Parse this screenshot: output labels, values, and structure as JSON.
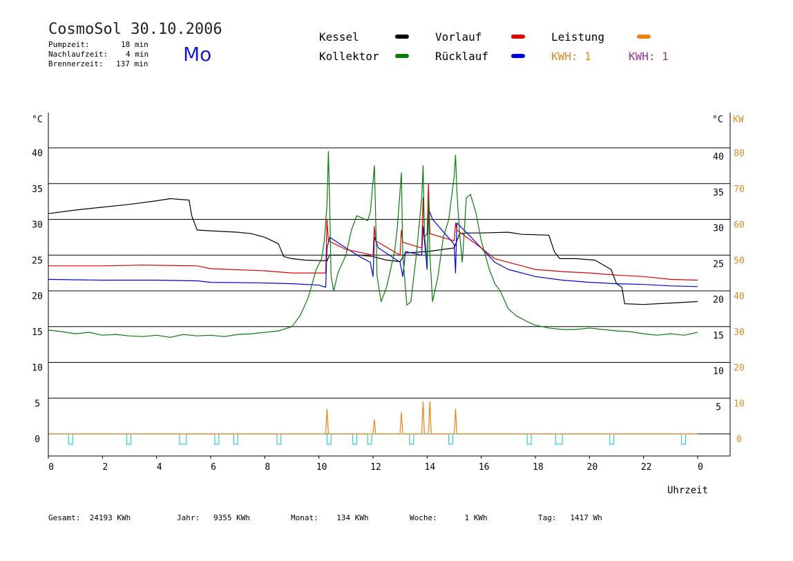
{
  "header": {
    "title": "CosmoSol 30.10.2006",
    "day": "Mo",
    "stats": [
      {
        "label": "Pumpzeit:",
        "value": "18 min"
      },
      {
        "label": "Nachlaufzeit:",
        "value": "4 min"
      },
      {
        "label": "Brennerzeit:",
        "value": "137 min"
      }
    ]
  },
  "legend": {
    "kessel": "Kessel",
    "vorlauf": "Vorlauf",
    "leistung": "Leistung",
    "kollektor": "Kollektor",
    "ruecklauf": "Rücklauf",
    "kwh1": "KWH: 1",
    "kwh2": "KWH: 1"
  },
  "colors": {
    "kessel": "#000000",
    "vorlauf": "#dd0000",
    "leistung": "#f08010",
    "kollektor": "#0a7a0a",
    "ruecklauf": "#0000dd",
    "kwh2": "#993399",
    "pump": "#33cccc",
    "axis_right_kw": "#e08a1e"
  },
  "footer": {
    "gesamt": "Gesamt:  24193 KWh",
    "jahr": "Jahr:   9355 KWh",
    "monat": "Monat:    134 KWh",
    "woche": "Woche:      1 KWh",
    "tag": "Tag:   1417 Wh"
  },
  "chart_data": {
    "type": "line",
    "xlabel": "Uhrzeit",
    "ylabel_left": "°C",
    "ylabel_right_temp": "°C",
    "ylabel_right_power": "KW",
    "x_ticks": [
      "0",
      "2",
      "4",
      "6",
      "8",
      "10",
      "12",
      "14",
      "16",
      "18",
      "20",
      "22",
      "0"
    ],
    "xlim": [
      0,
      24
    ],
    "ylim": [
      -3,
      45
    ],
    "y_ticks_left": [
      "0",
      "5",
      "10",
      "15",
      "20",
      "25",
      "30",
      "35",
      "40"
    ],
    "y_ticks_right_temp": [
      "5",
      "10",
      "15",
      "20",
      "25",
      "30",
      "35",
      "40"
    ],
    "y_ticks_right_power": [
      "0",
      "10",
      "20",
      "30",
      "40",
      "50",
      "60",
      "70",
      "80"
    ],
    "grid": true,
    "series": [
      {
        "name": "Kessel",
        "key": "kessel",
        "points": [
          [
            0,
            30.8
          ],
          [
            1,
            31.3
          ],
          [
            2,
            31.7
          ],
          [
            3,
            32.1
          ],
          [
            4,
            32.6
          ],
          [
            4.5,
            32.9
          ],
          [
            5.2,
            32.7
          ],
          [
            5.3,
            30.5
          ],
          [
            5.5,
            28.5
          ],
          [
            6,
            28.4
          ],
          [
            7,
            28.2
          ],
          [
            7.5,
            28.0
          ],
          [
            8,
            27.5
          ],
          [
            8.5,
            26.6
          ],
          [
            8.7,
            24.8
          ],
          [
            9,
            24.5
          ],
          [
            9.5,
            24.3
          ],
          [
            10.3,
            24.2
          ],
          [
            10.4,
            25.0
          ],
          [
            11.5,
            25.0
          ],
          [
            12,
            24.8
          ],
          [
            12.5,
            24.3
          ],
          [
            13,
            24.1
          ],
          [
            13.2,
            25.3
          ],
          [
            14,
            25.5
          ],
          [
            15,
            26.0
          ],
          [
            15.2,
            28.0
          ],
          [
            15.5,
            28.1
          ],
          [
            16,
            28.1
          ],
          [
            17,
            28.2
          ],
          [
            17.5,
            27.9
          ],
          [
            18.5,
            27.8
          ],
          [
            18.7,
            25.5
          ],
          [
            18.9,
            24.5
          ],
          [
            19.5,
            24.5
          ],
          [
            20.2,
            24.3
          ],
          [
            20.8,
            23.0
          ],
          [
            21,
            21.0
          ],
          [
            21.2,
            20.5
          ],
          [
            21.3,
            18.2
          ],
          [
            22,
            18.1
          ],
          [
            23,
            18.3
          ],
          [
            24,
            18.5
          ]
        ]
      },
      {
        "name": "Vorlauf",
        "key": "vorlauf",
        "points": [
          [
            0,
            23.5
          ],
          [
            2,
            23.5
          ],
          [
            3.5,
            23.6
          ],
          [
            5.5,
            23.5
          ],
          [
            6,
            23.1
          ],
          [
            8,
            22.8
          ],
          [
            9,
            22.5
          ],
          [
            10,
            22.5
          ],
          [
            10.25,
            22.5
          ],
          [
            10.3,
            30.0
          ],
          [
            10.35,
            27.0
          ],
          [
            11,
            25.8
          ],
          [
            12,
            25.0
          ],
          [
            12.05,
            29.0
          ],
          [
            12.1,
            27.0
          ],
          [
            13,
            25.0
          ],
          [
            13.05,
            28.5
          ],
          [
            13.1,
            26.8
          ],
          [
            13.8,
            26.0
          ],
          [
            13.85,
            33.0
          ],
          [
            13.9,
            27.5
          ],
          [
            14,
            28.0
          ],
          [
            14.05,
            35.0
          ],
          [
            14.1,
            28.0
          ],
          [
            15,
            27.0
          ],
          [
            15.05,
            29.5
          ],
          [
            15.1,
            28.5
          ],
          [
            16,
            26.0
          ],
          [
            16.5,
            24.5
          ],
          [
            17,
            24.0
          ],
          [
            18,
            23.0
          ],
          [
            19,
            22.7
          ],
          [
            20,
            22.5
          ],
          [
            21,
            22.2
          ],
          [
            22,
            22.0
          ],
          [
            23,
            21.6
          ],
          [
            24,
            21.5
          ]
        ]
      },
      {
        "name": "Rücklauf",
        "key": "ruecklauf",
        "points": [
          [
            0,
            21.6
          ],
          [
            2,
            21.5
          ],
          [
            4,
            21.5
          ],
          [
            5.5,
            21.4
          ],
          [
            6,
            21.2
          ],
          [
            8,
            21.1
          ],
          [
            9,
            21.0
          ],
          [
            10,
            20.8
          ],
          [
            10.25,
            20.5
          ],
          [
            10.3,
            26.0
          ],
          [
            10.4,
            27.5
          ],
          [
            11,
            26.0
          ],
          [
            11.5,
            24.8
          ],
          [
            11.9,
            24.0
          ],
          [
            12,
            22.0
          ],
          [
            12.05,
            27.5
          ],
          [
            12.2,
            26.0
          ],
          [
            13,
            24.0
          ],
          [
            13.1,
            22.0
          ],
          [
            13.2,
            25.5
          ],
          [
            13.8,
            25.0
          ],
          [
            13.85,
            29.0
          ],
          [
            14,
            23.0
          ],
          [
            14.05,
            31.5
          ],
          [
            14.2,
            30.0
          ],
          [
            15,
            26.5
          ],
          [
            15.05,
            22.5
          ],
          [
            15.1,
            29.5
          ],
          [
            15.5,
            28.0
          ],
          [
            16,
            26.0
          ],
          [
            16.5,
            24.0
          ],
          [
            17,
            23.0
          ],
          [
            18,
            22.0
          ],
          [
            19,
            21.5
          ],
          [
            20,
            21.2
          ],
          [
            21,
            21.0
          ],
          [
            22,
            20.9
          ],
          [
            23,
            20.7
          ],
          [
            24,
            20.6
          ]
        ]
      },
      {
        "name": "Kollektor",
        "key": "kollektor",
        "points": [
          [
            0,
            14.5
          ],
          [
            0.5,
            14.3
          ],
          [
            1,
            14.0
          ],
          [
            1.5,
            14.2
          ],
          [
            2,
            13.8
          ],
          [
            2.5,
            13.9
          ],
          [
            3,
            13.7
          ],
          [
            3.5,
            13.6
          ],
          [
            4,
            13.8
          ],
          [
            4.5,
            13.5
          ],
          [
            5,
            13.9
          ],
          [
            5.5,
            13.7
          ],
          [
            6,
            13.8
          ],
          [
            6.5,
            13.6
          ],
          [
            7,
            13.9
          ],
          [
            7.5,
            14.0
          ],
          [
            8,
            14.2
          ],
          [
            8.5,
            14.4
          ],
          [
            9,
            15.0
          ],
          [
            9.3,
            16.5
          ],
          [
            9.6,
            19.0
          ],
          [
            9.9,
            23.0
          ],
          [
            10.1,
            24.5
          ],
          [
            10.2,
            27.0
          ],
          [
            10.3,
            32.0
          ],
          [
            10.35,
            39.5
          ],
          [
            10.4,
            32.0
          ],
          [
            10.45,
            22.0
          ],
          [
            10.55,
            20.0
          ],
          [
            10.7,
            22.5
          ],
          [
            11,
            25.0
          ],
          [
            11.2,
            28.5
          ],
          [
            11.4,
            30.5
          ],
          [
            11.6,
            30.2
          ],
          [
            11.8,
            29.8
          ],
          [
            11.9,
            31.0
          ],
          [
            12.05,
            37.5
          ],
          [
            12.1,
            30.0
          ],
          [
            12.15,
            22.0
          ],
          [
            12.3,
            18.5
          ],
          [
            12.5,
            20.5
          ],
          [
            12.8,
            25.5
          ],
          [
            12.9,
            29.0
          ],
          [
            13.05,
            36.5
          ],
          [
            13.1,
            25.0
          ],
          [
            13.25,
            18.0
          ],
          [
            13.4,
            18.5
          ],
          [
            13.6,
            25.0
          ],
          [
            13.8,
            33.0
          ],
          [
            13.85,
            37.5
          ],
          [
            13.9,
            28.0
          ],
          [
            14.0,
            24.0
          ],
          [
            14.05,
            33.0
          ],
          [
            14.1,
            25.0
          ],
          [
            14.2,
            18.5
          ],
          [
            14.4,
            22.0
          ],
          [
            14.6,
            27.5
          ],
          [
            14.8,
            30.0
          ],
          [
            15.0,
            36.0
          ],
          [
            15.05,
            39.0
          ],
          [
            15.1,
            34.0
          ],
          [
            15.2,
            28.0
          ],
          [
            15.3,
            24.0
          ],
          [
            15.45,
            33.0
          ],
          [
            15.6,
            33.5
          ],
          [
            15.8,
            31.0
          ],
          [
            16,
            27.0
          ],
          [
            16.3,
            23.0
          ],
          [
            16.5,
            21.0
          ],
          [
            16.7,
            20.0
          ],
          [
            17,
            17.5
          ],
          [
            17.3,
            16.5
          ],
          [
            17.7,
            15.7
          ],
          [
            18,
            15.2
          ],
          [
            18.5,
            14.8
          ],
          [
            19,
            14.6
          ],
          [
            19.5,
            14.6
          ],
          [
            20,
            14.8
          ],
          [
            20.5,
            14.6
          ],
          [
            21,
            14.4
          ],
          [
            21.5,
            14.3
          ],
          [
            22,
            14.0
          ],
          [
            22.5,
            13.8
          ],
          [
            23,
            14.0
          ],
          [
            23.5,
            13.8
          ],
          [
            24,
            14.2
          ]
        ]
      },
      {
        "name": "Leistung",
        "key": "leistung",
        "points": [
          [
            0,
            0
          ],
          [
            10.25,
            0
          ],
          [
            10.3,
            3.5
          ],
          [
            10.35,
            0
          ],
          [
            12.0,
            0
          ],
          [
            12.05,
            2.0
          ],
          [
            12.1,
            0
          ],
          [
            13.0,
            0
          ],
          [
            13.05,
            3.0
          ],
          [
            13.1,
            0
          ],
          [
            13.8,
            0
          ],
          [
            13.85,
            4.5
          ],
          [
            13.9,
            0
          ],
          [
            14.05,
            0
          ],
          [
            14.1,
            4.5
          ],
          [
            14.15,
            0
          ],
          [
            15.0,
            0
          ],
          [
            15.05,
            3.5
          ],
          [
            15.1,
            0
          ],
          [
            24,
            0
          ]
        ]
      }
    ],
    "pump_intervals": [
      [
        0.75,
        0.9
      ],
      [
        2.9,
        3.05
      ],
      [
        4.85,
        5.1
      ],
      [
        6.15,
        6.3
      ],
      [
        6.85,
        7.0
      ],
      [
        8.45,
        8.6
      ],
      [
        10.3,
        10.45
      ],
      [
        11.25,
        11.4
      ],
      [
        11.8,
        11.95
      ],
      [
        13.35,
        13.5
      ],
      [
        14.8,
        14.95
      ],
      [
        17.7,
        17.85
      ],
      [
        18.75,
        19.0
      ],
      [
        20.75,
        20.9
      ],
      [
        23.4,
        23.55
      ]
    ]
  }
}
